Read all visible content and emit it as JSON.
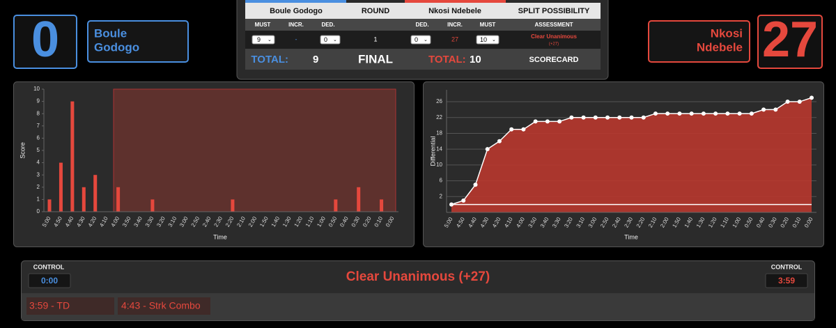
{
  "blue_corner": {
    "score": 0,
    "first_name": "Boule",
    "last_name": "Godogo"
  },
  "red_corner": {
    "score": 27,
    "first_name": "Nkosi",
    "last_name": "Ndebele"
  },
  "scorecard": {
    "headers": [
      "Boule Godogo",
      "ROUND",
      "Nkosi Ndebele",
      "SPLIT POSSIBILITY"
    ],
    "subheaders": [
      "MUST",
      "INCR.",
      "DED.",
      "DED.",
      "INCR.",
      "MUST",
      "ASSESSMENT"
    ],
    "row": {
      "blue_must": 9,
      "blue_incr": "-",
      "blue_ded": 0,
      "round": 1,
      "red_ded": 0,
      "red_incr": 27,
      "red_must": 10,
      "assessment": "Clear Unanimous",
      "assessment_detail": "(+27)"
    },
    "totals": {
      "blue_label": "TOTAL:",
      "blue_value": 9,
      "round_label": "FINAL",
      "red_label": "TOTAL:",
      "red_value": 10,
      "assessment_label": "SCORECARD"
    }
  },
  "score_chart": {
    "type": "bar",
    "categories": [
      "5:00",
      "4:50",
      "4:40",
      "4:30",
      "4:20",
      "4:10",
      "4:00",
      "3:50",
      "3:40",
      "3:30",
      "3:20",
      "3:10",
      "3:00",
      "2:50",
      "2:40",
      "2:30",
      "2:20",
      "2:10",
      "2:00",
      "1:50",
      "1:40",
      "1:30",
      "1:20",
      "1:10",
      "1:00",
      "0:50",
      "0:40",
      "0:30",
      "0:20",
      "0:10",
      "0:00"
    ],
    "values": [
      1,
      4,
      9,
      2,
      3,
      0,
      2,
      0,
      0,
      1,
      0,
      0,
      0,
      0,
      0,
      0,
      1,
      0,
      0,
      0,
      0,
      0,
      0,
      0,
      0,
      1,
      0,
      2,
      0,
      1,
      0
    ],
    "color": "#e5483d",
    "ylim": [
      0,
      10
    ],
    "yticks": [
      0,
      1,
      2,
      3,
      4,
      5,
      6,
      7,
      8,
      9,
      10
    ],
    "grid": false,
    "x_label": "Time",
    "y_label": "Score"
  },
  "differential_chart": {
    "type": "line",
    "categories": [
      "5:00",
      "4:50",
      "4:40",
      "4:30",
      "4:20",
      "4:10",
      "4:00",
      "3:50",
      "3:40",
      "3:30",
      "3:20",
      "3:10",
      "3:00",
      "2:50",
      "2:40",
      "2:30",
      "2:20",
      "2:10",
      "2:00",
      "1:50",
      "1:40",
      "1:30",
      "1:20",
      "1:10",
      "1:00",
      "0:50",
      "0:40",
      "0:30",
      "0:20",
      "0:10",
      "0:00"
    ],
    "values": [
      0,
      1,
      5,
      14,
      16,
      19,
      19,
      21,
      21,
      21,
      22,
      22,
      22,
      22,
      22,
      22,
      22,
      23,
      23,
      23,
      23,
      23,
      23,
      23,
      23,
      23,
      24,
      24,
      26,
      26,
      27
    ],
    "color": "#ffffff",
    "fill": "#b8372e",
    "ylim": [
      -2,
      29
    ],
    "yticks": [
      2,
      6,
      10,
      14,
      18,
      22,
      26
    ],
    "grid": true,
    "x_label": "Time",
    "y_label": "Differential"
  },
  "footer": {
    "blue_control_label": "CONTROL",
    "blue_control_time": "0:00",
    "result": "Clear Unanimous (+27)",
    "red_control_label": "CONTROL",
    "red_control_time": "3:59",
    "events": [
      "3:59 - TD",
      "4:43 - Strk Combo"
    ]
  }
}
